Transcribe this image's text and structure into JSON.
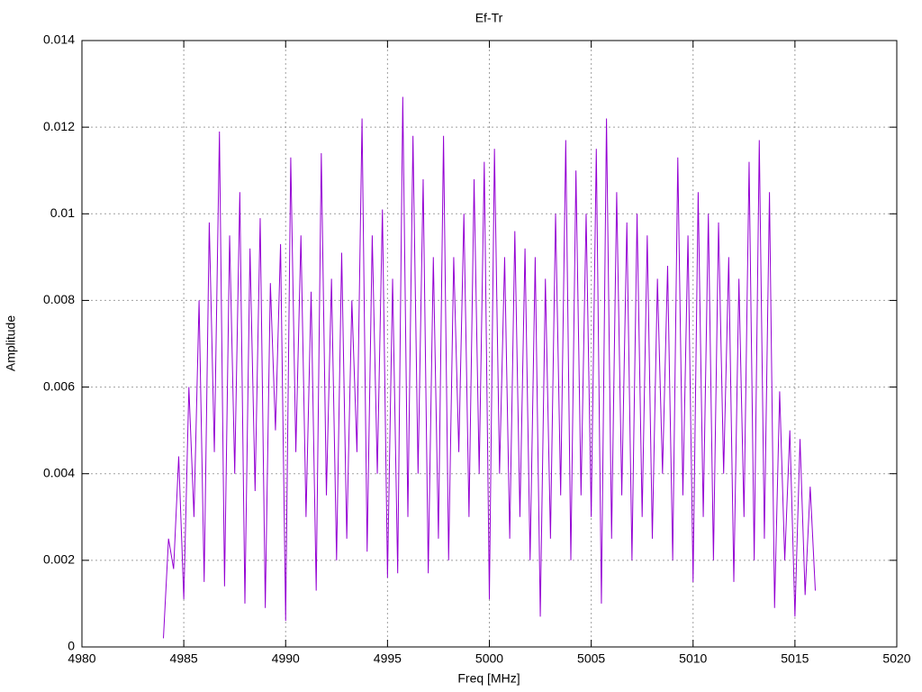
{
  "chart_data": {
    "type": "line",
    "title": "Ef-Tr",
    "x_label": "Freq [MHz]",
    "y_label": "Amplitude",
    "color": "#9400d3",
    "grid": true,
    "xlim": [
      4980,
      5020
    ],
    "xticks": [
      4980,
      4985,
      4990,
      4995,
      5000,
      5005,
      5010,
      5015,
      5020
    ],
    "ylim": [
      0,
      0.014
    ],
    "yticks": [
      0,
      0.002,
      0.004,
      0.006,
      0.008,
      0.01,
      0.012,
      0.014
    ],
    "x": [
      4984,
      4984.25,
      4984.5,
      4984.75,
      4985,
      4985.25,
      4985.5,
      4985.75,
      4986,
      4986.25,
      4986.5,
      4986.75,
      4987,
      4987.25,
      4987.5,
      4987.75,
      4988,
      4988.25,
      4988.5,
      4988.75,
      4989,
      4989.25,
      4989.5,
      4989.75,
      4990,
      4990.25,
      4990.5,
      4990.75,
      4991,
      4991.25,
      4991.5,
      4991.75,
      4992,
      4992.25,
      4992.5,
      4992.75,
      4993,
      4993.25,
      4993.5,
      4993.75,
      4994,
      4994.25,
      4994.5,
      4994.75,
      4995,
      4995.25,
      4995.5,
      4995.75,
      4996,
      4996.25,
      4996.5,
      4996.75,
      4997,
      4997.25,
      4997.5,
      4997.75,
      4998,
      4998.25,
      4998.5,
      4998.75,
      4999,
      4999.25,
      4999.5,
      4999.75,
      5000,
      5000.25,
      5000.5,
      5000.75,
      5001,
      5001.25,
      5001.5,
      5001.75,
      5002,
      5002.25,
      5002.5,
      5002.75,
      5003,
      5003.25,
      5003.5,
      5003.75,
      5004,
      5004.25,
      5004.5,
      5004.75,
      5005,
      5005.25,
      5005.5,
      5005.75,
      5006,
      5006.25,
      5006.5,
      5006.75,
      5007,
      5007.25,
      5007.5,
      5007.75,
      5008,
      5008.25,
      5008.5,
      5008.75,
      5009,
      5009.25,
      5009.5,
      5009.75,
      5010,
      5010.25,
      5010.5,
      5010.75,
      5011,
      5011.25,
      5011.5,
      5011.75,
      5012,
      5012.25,
      5012.5,
      5012.75,
      5013,
      5013.25,
      5013.5,
      5013.75,
      5014,
      5014.25,
      5014.5,
      5014.75,
      5015,
      5015.25,
      5015.5,
      5015.75,
      5016
    ],
    "values": [
      0.0002,
      0.0025,
      0.0018,
      0.0044,
      0.0011,
      0.006,
      0.003,
      0.008,
      0.0015,
      0.0098,
      0.0045,
      0.0119,
      0.0014,
      0.0095,
      0.004,
      0.0105,
      0.001,
      0.0092,
      0.0036,
      0.0099,
      0.0009,
      0.0084,
      0.005,
      0.0093,
      0.0006,
      0.0113,
      0.0045,
      0.0095,
      0.003,
      0.0082,
      0.0013,
      0.0114,
      0.0035,
      0.0085,
      0.002,
      0.0091,
      0.0025,
      0.008,
      0.0045,
      0.0122,
      0.0022,
      0.0095,
      0.004,
      0.0101,
      0.0016,
      0.0085,
      0.0017,
      0.0127,
      0.003,
      0.0118,
      0.004,
      0.0108,
      0.0017,
      0.009,
      0.0025,
      0.0118,
      0.002,
      0.009,
      0.0045,
      0.01,
      0.003,
      0.0108,
      0.004,
      0.0112,
      0.0011,
      0.0115,
      0.004,
      0.009,
      0.0025,
      0.0096,
      0.003,
      0.0092,
      0.002,
      0.009,
      0.0007,
      0.0085,
      0.0025,
      0.01,
      0.0035,
      0.0117,
      0.002,
      0.011,
      0.0035,
      0.01,
      0.003,
      0.0115,
      0.001,
      0.0122,
      0.0025,
      0.0105,
      0.0035,
      0.0098,
      0.002,
      0.01,
      0.003,
      0.0095,
      0.0025,
      0.0085,
      0.004,
      0.0088,
      0.002,
      0.0113,
      0.0035,
      0.0095,
      0.0015,
      0.0105,
      0.003,
      0.01,
      0.002,
      0.0098,
      0.004,
      0.009,
      0.0015,
      0.0085,
      0.003,
      0.0112,
      0.002,
      0.0117,
      0.0025,
      0.0105,
      0.0009,
      0.0059,
      0.002,
      0.005,
      0.0007,
      0.0048,
      0.0012,
      0.0037,
      0.0013
    ]
  }
}
